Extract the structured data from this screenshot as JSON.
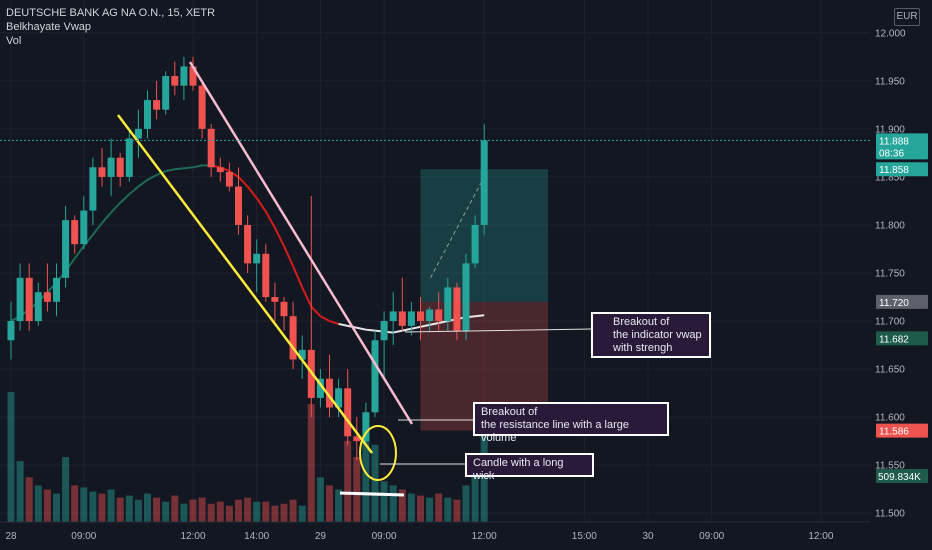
{
  "header": {
    "symbol_line": "DEUTSCHE BANK AG NA O.N., 15, XETR",
    "indicator": "Belkhayate Vwap",
    "volume": "Vol",
    "currency": "EUR"
  },
  "chart_data": {
    "type": "candlestick",
    "price_axis": {
      "ylim": [
        11.495,
        12.005
      ],
      "ticks": [
        "11.500",
        "11.550",
        "11.600",
        "11.650",
        "11.700",
        "11.750",
        "11.800",
        "11.850",
        "11.900",
        "11.950",
        "12.000"
      ]
    },
    "time_axis": {
      "ticks": [
        {
          "label": "28",
          "i": 0
        },
        {
          "label": "09:00",
          "i": 8
        },
        {
          "label": "12:00",
          "i": 20
        },
        {
          "label": "14:00",
          "i": 27
        },
        {
          "label": "29",
          "i": 34
        },
        {
          "label": "09:00",
          "i": 41
        },
        {
          "label": "12:00",
          "i": 52
        },
        {
          "label": "15:00",
          "i": 63
        },
        {
          "label": "30",
          "i": 70
        },
        {
          "label": "09:00",
          "i": 77
        },
        {
          "label": "12:00",
          "i": 89
        }
      ]
    },
    "candles": [
      [
        11.68,
        11.72,
        11.66,
        11.7
      ],
      [
        11.7,
        11.76,
        11.69,
        11.745
      ],
      [
        11.745,
        11.76,
        11.69,
        11.7
      ],
      [
        11.7,
        11.74,
        11.695,
        11.73
      ],
      [
        11.73,
        11.76,
        11.71,
        11.72
      ],
      [
        11.72,
        11.76,
        11.705,
        11.745
      ],
      [
        11.745,
        11.82,
        11.735,
        11.805
      ],
      [
        11.805,
        11.81,
        11.77,
        11.78
      ],
      [
        11.78,
        11.83,
        11.775,
        11.815
      ],
      [
        11.815,
        11.87,
        11.8,
        11.86
      ],
      [
        11.86,
        11.88,
        11.84,
        11.85
      ],
      [
        11.85,
        11.89,
        11.83,
        11.87
      ],
      [
        11.87,
        11.875,
        11.84,
        11.85
      ],
      [
        11.85,
        11.9,
        11.845,
        11.89
      ],
      [
        11.89,
        11.92,
        11.87,
        11.9
      ],
      [
        11.9,
        11.94,
        11.89,
        11.93
      ],
      [
        11.93,
        11.95,
        11.91,
        11.92
      ],
      [
        11.92,
        11.96,
        11.915,
        11.955
      ],
      [
        11.955,
        11.97,
        11.935,
        11.945
      ],
      [
        11.945,
        11.975,
        11.93,
        11.965
      ],
      [
        11.965,
        11.975,
        11.94,
        11.945
      ],
      [
        11.945,
        11.95,
        11.89,
        11.9
      ],
      [
        11.9,
        11.905,
        11.85,
        11.86
      ],
      [
        11.86,
        11.87,
        11.845,
        11.855
      ],
      [
        11.855,
        11.865,
        11.835,
        11.84
      ],
      [
        11.84,
        11.86,
        11.79,
        11.8
      ],
      [
        11.8,
        11.81,
        11.75,
        11.76
      ],
      [
        11.76,
        11.785,
        11.73,
        11.77
      ],
      [
        11.77,
        11.78,
        11.72,
        11.725
      ],
      [
        11.725,
        11.74,
        11.7,
        11.72
      ],
      [
        11.72,
        11.725,
        11.69,
        11.705
      ],
      [
        11.705,
        11.72,
        11.65,
        11.66
      ],
      [
        11.66,
        11.685,
        11.64,
        11.67
      ],
      [
        11.67,
        11.83,
        11.6,
        11.62
      ],
      [
        11.62,
        11.65,
        11.61,
        11.64
      ],
      [
        11.64,
        11.665,
        11.6,
        11.61
      ],
      [
        11.61,
        11.64,
        11.6,
        11.63
      ],
      [
        11.63,
        11.65,
        11.57,
        11.58
      ],
      [
        11.58,
        11.6,
        11.555,
        11.575
      ],
      [
        11.575,
        11.615,
        11.57,
        11.605
      ],
      [
        11.605,
        11.69,
        11.6,
        11.68
      ],
      [
        11.68,
        11.71,
        11.64,
        11.7
      ],
      [
        11.7,
        11.73,
        11.675,
        11.71
      ],
      [
        11.71,
        11.745,
        11.69,
        11.695
      ],
      [
        11.695,
        11.72,
        11.685,
        11.71
      ],
      [
        11.71,
        11.725,
        11.68,
        11.7
      ],
      [
        11.7,
        11.715,
        11.69,
        11.712
      ],
      [
        11.712,
        11.73,
        11.69,
        11.7
      ],
      [
        11.7,
        11.745,
        11.69,
        11.735
      ],
      [
        11.735,
        11.74,
        11.68,
        11.69
      ],
      [
        11.69,
        11.77,
        11.68,
        11.76
      ],
      [
        11.76,
        11.81,
        11.755,
        11.8
      ],
      [
        11.8,
        11.905,
        11.79,
        11.888
      ]
    ],
    "vwap": {
      "name": "Belkhayate Vwap",
      "values": [
        11.7,
        11.705,
        11.712,
        11.72,
        11.73,
        11.74,
        11.752,
        11.765,
        11.778,
        11.79,
        11.802,
        11.813,
        11.823,
        11.832,
        11.84,
        11.847,
        11.852,
        11.856,
        11.858,
        11.859,
        11.86,
        11.862,
        11.862,
        11.86,
        11.856,
        11.85,
        11.84,
        11.828,
        11.814,
        11.797,
        11.778,
        11.757,
        11.735,
        11.715,
        11.705,
        11.7,
        11.697,
        11.695,
        11.693,
        11.691,
        11.69,
        11.689,
        11.688,
        11.69,
        11.692,
        11.694,
        11.696,
        11.698,
        11.7,
        11.702,
        11.704,
        11.705,
        11.706
      ]
    },
    "volume": {
      "name": "Vol",
      "values": [
        320,
        150,
        110,
        90,
        80,
        70,
        160,
        90,
        85,
        75,
        70,
        80,
        60,
        65,
        55,
        70,
        60,
        50,
        65,
        45,
        55,
        60,
        45,
        50,
        40,
        55,
        60,
        50,
        50,
        40,
        45,
        55,
        40,
        290,
        110,
        90,
        80,
        200,
        160,
        230,
        190,
        100,
        90,
        80,
        70,
        65,
        60,
        70,
        60,
        55,
        90,
        140,
        290
      ],
      "last_label": "509.834K"
    },
    "price_labels": [
      {
        "value": 11.888,
        "text": "11.888",
        "sub": "08:36",
        "color": "#26a69a"
      },
      {
        "value": 11.858,
        "text": "11.858",
        "color": "#26a69a"
      },
      {
        "value": 11.72,
        "text": "11.720",
        "color": "#5d606b"
      },
      {
        "value": 11.682,
        "text": "11.682",
        "color": "#1e5b4a"
      },
      {
        "value": 11.586,
        "text": "11.586",
        "color": "#ef5350"
      }
    ],
    "position": {
      "entry": 11.72,
      "target": 11.858,
      "stop": 11.586
    },
    "colors": {
      "up": "#26a69a",
      "down": "#ef5350",
      "background": "#131722",
      "grid": "#1e222d"
    }
  },
  "annotations": {
    "vwap_breakout": {
      "line1": "Breakout of",
      "line2": "the indicator vwap",
      "line3": "with strengh"
    },
    "resistance_breakout": {
      "line1": "Breakout of",
      "line2": "the resistance line with a large volume"
    },
    "long_wick": {
      "line1": "Candle with a long wick"
    }
  }
}
